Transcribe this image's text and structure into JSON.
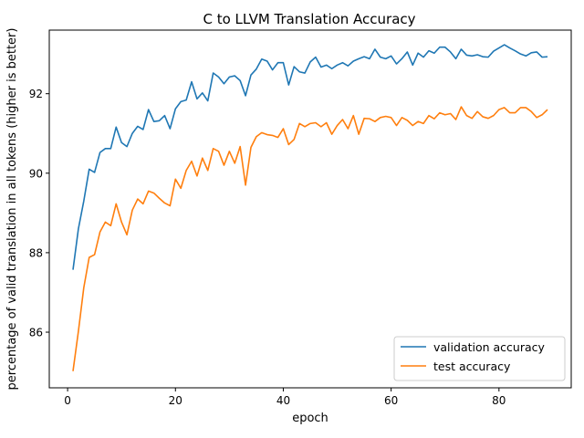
{
  "chart_data": {
    "type": "line",
    "title": "C to LLVM Translation Accuracy",
    "xlabel": "epoch",
    "ylabel": "percentage of valid translation in all tokens (higher is better)",
    "xlim": [
      -3.4,
      93.4
    ],
    "ylim": [
      84.6,
      93.6
    ],
    "xticks": [
      0,
      20,
      40,
      60,
      80
    ],
    "yticks": [
      86,
      88,
      90,
      92
    ],
    "grid": false,
    "legend_position": "lower-right",
    "x": [
      1,
      2,
      3,
      4,
      5,
      6,
      7,
      8,
      9,
      10,
      11,
      12,
      13,
      14,
      15,
      16,
      17,
      18,
      19,
      20,
      21,
      22,
      23,
      24,
      25,
      26,
      27,
      28,
      29,
      30,
      31,
      32,
      33,
      34,
      35,
      36,
      37,
      38,
      39,
      40,
      41,
      42,
      43,
      44,
      45,
      46,
      47,
      48,
      49,
      50,
      51,
      52,
      53,
      54,
      55,
      56,
      57,
      58,
      59,
      60,
      61,
      62,
      63,
      64,
      65,
      66,
      67,
      68,
      69,
      70,
      71,
      72,
      73,
      74,
      75,
      76,
      77,
      78,
      79,
      80,
      81,
      82,
      83,
      84,
      85,
      86,
      87,
      88,
      89
    ],
    "series": [
      {
        "name": "validation accuracy",
        "color": "#1f77b4",
        "values": [
          87.57,
          88.6,
          89.3,
          90.1,
          90.02,
          90.52,
          90.62,
          90.62,
          91.16,
          90.77,
          90.67,
          91.0,
          91.18,
          91.1,
          91.6,
          91.3,
          91.32,
          91.45,
          91.12,
          91.62,
          91.8,
          91.84,
          92.3,
          91.87,
          92.02,
          91.82,
          92.52,
          92.42,
          92.25,
          92.42,
          92.45,
          92.33,
          91.95,
          92.47,
          92.62,
          92.87,
          92.82,
          92.6,
          92.78,
          92.78,
          92.22,
          92.68,
          92.55,
          92.52,
          92.8,
          92.92,
          92.67,
          92.72,
          92.63,
          92.72,
          92.78,
          92.7,
          92.82,
          92.88,
          92.93,
          92.88,
          93.12,
          92.92,
          92.88,
          92.95,
          92.75,
          92.88,
          93.05,
          92.72,
          93.02,
          92.92,
          93.08,
          93.02,
          93.17,
          93.17,
          93.05,
          92.88,
          93.12,
          92.97,
          92.95,
          92.98,
          92.93,
          92.92,
          93.07,
          93.15,
          93.23,
          93.15,
          93.08,
          93.0,
          92.95,
          93.03,
          93.05,
          92.92,
          92.93
        ]
      },
      {
        "name": "test accuracy",
        "color": "#ff7f0e",
        "values": [
          85.02,
          86.02,
          87.12,
          87.88,
          87.95,
          88.52,
          88.77,
          88.68,
          89.23,
          88.77,
          88.45,
          89.07,
          89.35,
          89.23,
          89.55,
          89.5,
          89.37,
          89.25,
          89.18,
          89.85,
          89.62,
          90.07,
          90.3,
          89.93,
          90.38,
          90.07,
          90.62,
          90.55,
          90.2,
          90.55,
          90.25,
          90.67,
          89.7,
          90.65,
          90.92,
          91.02,
          90.97,
          90.95,
          90.9,
          91.12,
          90.72,
          90.85,
          91.25,
          91.17,
          91.25,
          91.27,
          91.17,
          91.27,
          90.98,
          91.2,
          91.35,
          91.12,
          91.45,
          90.98,
          91.38,
          91.37,
          91.3,
          91.4,
          91.43,
          91.4,
          91.2,
          91.4,
          91.33,
          91.2,
          91.3,
          91.25,
          91.45,
          91.37,
          91.52,
          91.47,
          91.5,
          91.35,
          91.67,
          91.45,
          91.38,
          91.55,
          91.42,
          91.38,
          91.45,
          91.6,
          91.65,
          91.52,
          91.52,
          91.65,
          91.65,
          91.55,
          91.4,
          91.47,
          91.6
        ]
      }
    ]
  }
}
